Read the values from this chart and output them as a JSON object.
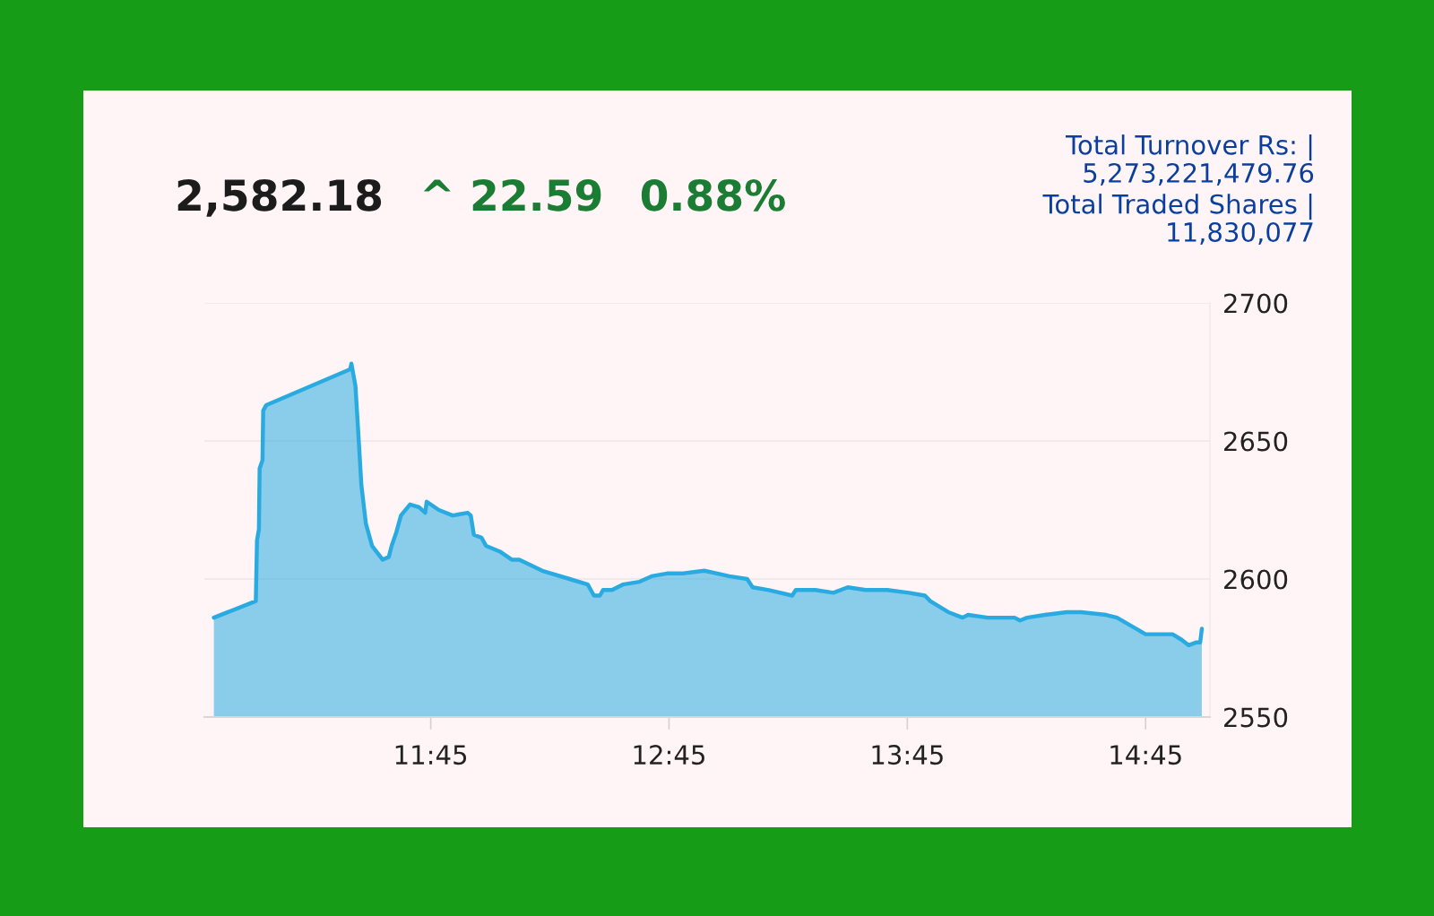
{
  "chart_data": {
    "type": "area",
    "title": "2,582.18",
    "annotations": [
      "^ 22.59",
      "0.88%",
      "Total Turnover Rs: |\n5,273,221,479.76",
      "Total Traded Shares |\n11,830,077"
    ],
    "x": [
      10.84,
      11.016,
      11.021,
      11.029,
      11.032,
      11.044,
      11.047,
      11.06,
      11.412,
      11.417,
      11.434,
      11.446,
      11.459,
      11.478,
      11.504,
      11.548,
      11.574,
      11.586,
      11.606,
      11.625,
      11.663,
      11.701,
      11.727,
      11.733,
      11.784,
      11.842,
      11.905,
      11.918,
      11.931,
      11.963,
      11.982,
      12.039,
      12.09,
      12.122,
      12.218,
      12.333,
      12.409,
      12.435,
      12.46,
      12.473,
      12.511,
      12.556,
      12.626,
      12.677,
      12.741,
      12.807,
      12.898,
      13.003,
      13.078,
      13.101,
      13.169,
      13.267,
      13.282,
      13.364,
      13.44,
      13.5,
      13.575,
      13.666,
      13.756,
      13.824,
      13.846,
      13.922,
      13.982,
      14.005,
      14.087,
      14.2,
      14.223,
      14.253,
      14.328,
      14.419,
      14.479,
      14.584,
      14.63,
      14.69,
      14.75,
      14.81,
      14.863,
      14.901,
      14.931,
      14.961,
      14.979,
      14.986
    ],
    "series": [
      {
        "color": "#29abe2",
        "values": [
          2586,
          2592,
          2614,
          2618,
          2640,
          2643,
          2661,
          2663,
          2676,
          2678,
          2670,
          2653,
          2634,
          2620,
          2612,
          2607,
          2608,
          2612,
          2617,
          2623,
          2627,
          2626,
          2624,
          2628,
          2625,
          2623,
          2624,
          2623,
          2616,
          2615,
          2612,
          2610,
          2607,
          2607,
          2603,
          2600,
          2598,
          2594,
          2594,
          2596,
          2596,
          2598,
          2599,
          2601,
          2602,
          2602,
          2603,
          2601,
          2600,
          2597,
          2596,
          2594,
          2596,
          2596,
          2595,
          2597,
          2596,
          2596,
          2595,
          2594,
          2592,
          2588,
          2586,
          2587,
          2586,
          2586,
          2585,
          2586,
          2587,
          2588,
          2588,
          2587,
          2586,
          2583,
          2580,
          2580,
          2580,
          2578,
          2576,
          2577,
          2577,
          2582
        ]
      }
    ],
    "xlim": [
      10.8,
      15.02
    ],
    "ylim": [
      2550,
      2700
    ],
    "xticks": [
      {
        "value": 11.75,
        "label": "11:45"
      },
      {
        "value": 12.75,
        "label": "12:45"
      },
      {
        "value": 13.75,
        "label": "13:45"
      },
      {
        "value": 14.75,
        "label": "14:45"
      }
    ],
    "yticks": [
      2550,
      2600,
      2650,
      2700
    ],
    "grid": "y",
    "line_style": "solid"
  }
}
